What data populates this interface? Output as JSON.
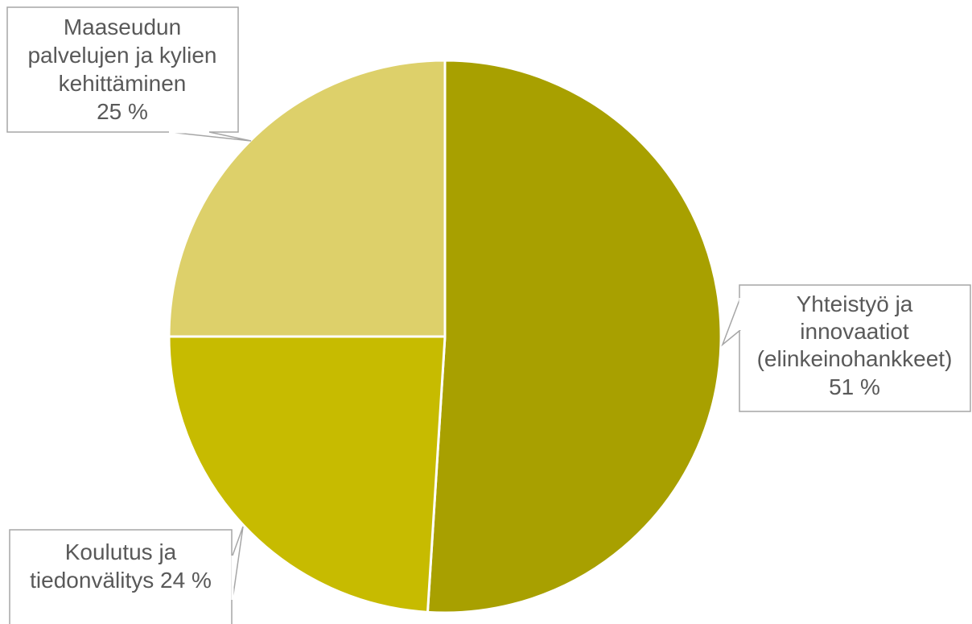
{
  "chart_data": {
    "type": "pie",
    "start_angle": "12 o'clock",
    "direction": "clockwise",
    "slices": [
      {
        "label_lines": [
          "Yhteistyö ja",
          "innovaatiot",
          "(elinkeinohankkeet)",
          "51 %"
        ],
        "name": "Yhteistyö ja innovaatiot (elinkeinohankkeet)",
        "value": 51,
        "color": "#A8A000"
      },
      {
        "label_lines": [
          "Koulutus ja",
          "tiedonvälitys 24 %"
        ],
        "name": "Koulutus ja tiedonvälitys",
        "value": 24,
        "color": "#C7BB00"
      },
      {
        "label_lines": [
          "Maaseudun",
          "palvelujen ja kylien",
          "kehittäminen",
          "25 %"
        ],
        "name": "Maaseudun palvelujen ja kylien kehittäminen",
        "value": 25,
        "color": "#DDD06A"
      }
    ]
  }
}
